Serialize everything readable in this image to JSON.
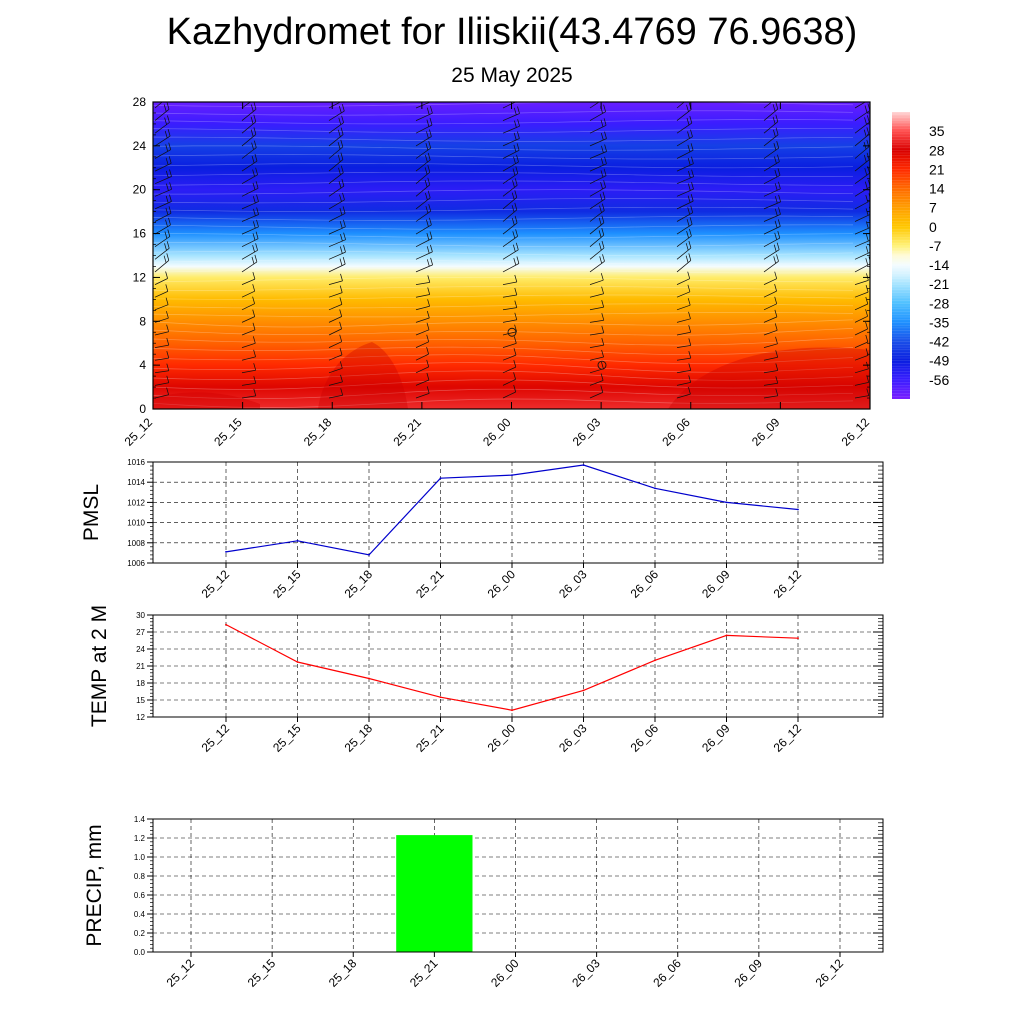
{
  "title": "Kazhydromet for Iliiskii(43.4769 76.9638)",
  "subtitle": "25 May 2025",
  "chart_data": [
    {
      "type": "heatmap",
      "x_ticks": [
        "25_12",
        "25_15",
        "25_18",
        "25_21",
        "26_00",
        "26_03",
        "26_06",
        "26_09",
        "26_12"
      ],
      "ylim": [
        0,
        28
      ],
      "y_ticks": [
        "0",
        "4",
        "8",
        "12",
        "16",
        "20",
        "24",
        "28"
      ],
      "colorbar": {
        "labels": [
          "35",
          "28",
          "21",
          "14",
          "7",
          "0",
          "-7",
          "-14",
          "-21",
          "-28",
          "-35",
          "-42",
          "-49",
          "-56"
        ],
        "range": [
          -63,
          42
        ]
      },
      "temperature_profile": {
        "heights": [
          0,
          2,
          4,
          6,
          8,
          10,
          12,
          13,
          14,
          16,
          18,
          20,
          22,
          24,
          26,
          28
        ],
        "values": [
          32,
          27,
          21,
          15,
          9,
          2,
          -6,
          -14,
          -21,
          -35,
          -47,
          -54,
          -49,
          -44,
          -56,
          -61
        ]
      }
    },
    {
      "type": "line",
      "ylabel": "PMSL",
      "categories": [
        "25_12",
        "25_15",
        "25_18",
        "25_21",
        "26_00",
        "26_03",
        "26_06",
        "26_09",
        "26_12"
      ],
      "values": [
        1007.1,
        1008.2,
        1006.8,
        1014.4,
        1014.7,
        1015.7,
        1013.4,
        1012.0,
        1011.3
      ],
      "ylim": [
        1006,
        1016
      ],
      "y_ticks": [
        "1006",
        "1008",
        "1010",
        "1012",
        "1014",
        "1016"
      ],
      "color": "#0000cc"
    },
    {
      "type": "line",
      "ylabel": "TEMP at 2 M",
      "categories": [
        "25_12",
        "25_15",
        "25_18",
        "25_21",
        "26_00",
        "26_03",
        "26_06",
        "26_09",
        "26_12"
      ],
      "values": [
        28.3,
        21.7,
        18.8,
        15.5,
        13.2,
        16.7,
        22.0,
        26.4,
        25.9
      ],
      "ylim": [
        12,
        30
      ],
      "y_ticks": [
        "12",
        "15",
        "18",
        "21",
        "24",
        "27",
        "30"
      ],
      "color": "#ff0000"
    },
    {
      "type": "bar",
      "ylabel": "PRECIP, mm",
      "categories": [
        "25_12",
        "25_15",
        "25_18",
        "25_21",
        "26_00",
        "26_03",
        "26_06",
        "26_09",
        "26_12"
      ],
      "values": [
        0,
        0,
        0,
        1.23,
        0,
        0,
        0,
        0,
        0
      ],
      "ylim": [
        0,
        1.4
      ],
      "y_ticks": [
        "0.0",
        "0.2",
        "0.4",
        "0.6",
        "0.8",
        "1.0",
        "1.2",
        "1.4"
      ],
      "color": "#00ff00"
    }
  ]
}
